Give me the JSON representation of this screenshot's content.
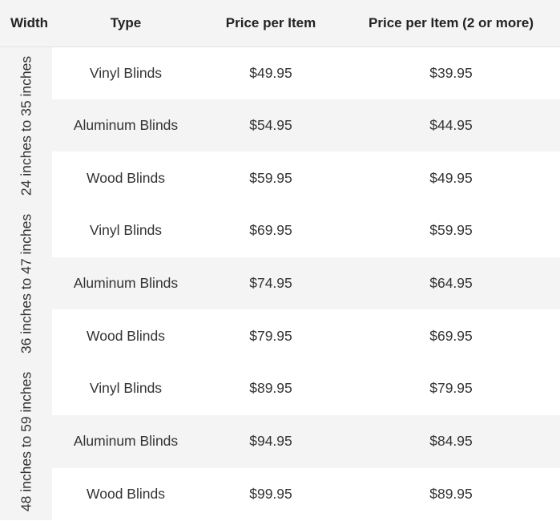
{
  "header": {
    "width": "Width",
    "type": "Type",
    "price": "Price per Item",
    "price_bulk": "Price per Item (2 or more)"
  },
  "groups": [
    {
      "label": "24 inches to 35 inches",
      "rows": [
        {
          "type": "Vinyl Blinds",
          "price": "$49.95",
          "price_bulk": "$39.95"
        },
        {
          "type": "Aluminum Blinds",
          "price": "$54.95",
          "price_bulk": "$44.95"
        },
        {
          "type": "Wood Blinds",
          "price": "$59.95",
          "price_bulk": "$49.95"
        }
      ]
    },
    {
      "label": "36 inches to 47 inches",
      "rows": [
        {
          "type": "Vinyl Blinds",
          "price": "$69.95",
          "price_bulk": "$59.95"
        },
        {
          "type": "Aluminum Blinds",
          "price": "$74.95",
          "price_bulk": "$64.95"
        },
        {
          "type": "Wood Blinds",
          "price": "$79.95",
          "price_bulk": "$69.95"
        }
      ]
    },
    {
      "label": "48 inches to 59 inches",
      "rows": [
        {
          "type": "Vinyl Blinds",
          "price": "$89.95",
          "price_bulk": "$79.95"
        },
        {
          "type": "Aluminum Blinds",
          "price": "$94.95",
          "price_bulk": "$84.95"
        },
        {
          "type": "Wood Blinds",
          "price": "$99.95",
          "price_bulk": "$89.95"
        }
      ]
    }
  ],
  "colors": {
    "row_shade": "#f4f4f4",
    "row_plain": "#ffffff",
    "text": "#333333"
  }
}
